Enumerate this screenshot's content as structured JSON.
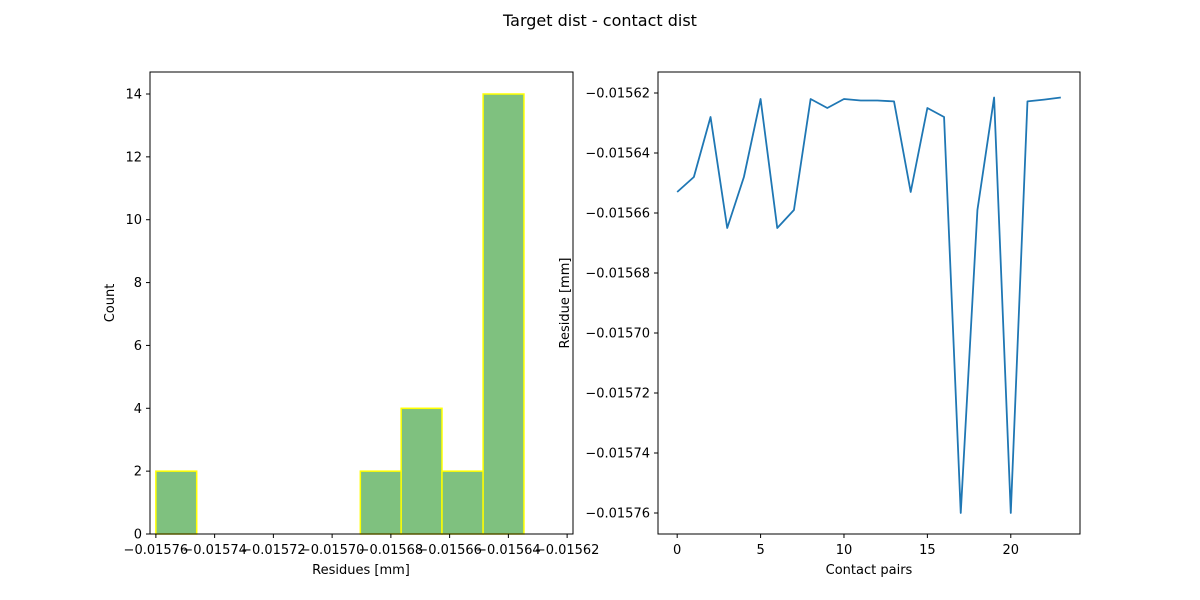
{
  "figure": {
    "title": "Target dist - contact dist"
  },
  "chart_data": [
    {
      "type": "bar",
      "subtype": "histogram",
      "title": "",
      "xlabel": "Residues [mm]",
      "ylabel": "Count",
      "xlim": [
        -0.015762,
        -0.015618
      ],
      "ylim": [
        0,
        14.7
      ],
      "bins": [
        {
          "x0": -0.01576,
          "x1": -0.0157461,
          "count": 2
        },
        {
          "x0": -0.0157461,
          "x1": -0.0157322,
          "count": 0
        },
        {
          "x0": -0.0157322,
          "x1": -0.0157182,
          "count": 0
        },
        {
          "x0": -0.0157182,
          "x1": -0.0157043,
          "count": 0
        },
        {
          "x0": -0.0157043,
          "x1": -0.0156904,
          "count": 0
        },
        {
          "x0": -0.0156904,
          "x1": -0.0156765,
          "count": 2
        },
        {
          "x0": -0.0156765,
          "x1": -0.0156626,
          "count": 4
        },
        {
          "x0": -0.0156626,
          "x1": -0.0156486,
          "count": 2
        },
        {
          "x0": -0.0156486,
          "x1": -0.0156347,
          "count": 14
        }
      ],
      "bar_color": "#7fc17f",
      "edge_color": "#ffff00",
      "xticks": [
        {
          "value": -0.01576,
          "label": "−0.01576"
        },
        {
          "value": -0.01574,
          "label": "−0.01574"
        },
        {
          "value": -0.01572,
          "label": "−0.01572"
        },
        {
          "value": -0.0157,
          "label": "−0.01570"
        },
        {
          "value": -0.01568,
          "label": "−0.01568"
        },
        {
          "value": -0.01566,
          "label": "−0.01566"
        },
        {
          "value": -0.01564,
          "label": "−0.01564"
        },
        {
          "value": -0.01562,
          "label": "−0.01562"
        }
      ],
      "yticks": [
        {
          "value": 0,
          "label": "0"
        },
        {
          "value": 2,
          "label": "2"
        },
        {
          "value": 4,
          "label": "4"
        },
        {
          "value": 6,
          "label": "6"
        },
        {
          "value": 8,
          "label": "8"
        },
        {
          "value": 10,
          "label": "10"
        },
        {
          "value": 12,
          "label": "12"
        },
        {
          "value": 14,
          "label": "14"
        }
      ]
    },
    {
      "type": "line",
      "title": "",
      "xlabel": "Contact pairs",
      "ylabel": "Residue [mm]",
      "xlim": [
        -1.15,
        24.15
      ],
      "ylim": [
        -0.015767,
        -0.015613
      ],
      "line_color": "#1f77b4",
      "x": [
        0,
        1,
        2,
        3,
        4,
        5,
        6,
        7,
        8,
        9,
        10,
        11,
        12,
        13,
        14,
        15,
        16,
        17,
        18,
        19,
        20,
        21,
        22,
        23
      ],
      "y": [
        -0.015653,
        -0.015648,
        -0.015628,
        -0.015665,
        -0.015648,
        -0.015622,
        -0.015665,
        -0.015659,
        -0.015622,
        -0.015625,
        -0.015622,
        -0.0156225,
        -0.0156225,
        -0.0156228,
        -0.015653,
        -0.015625,
        -0.015628,
        -0.01576,
        -0.015659,
        -0.0156215,
        -0.01576,
        -0.0156228,
        -0.0156222,
        -0.0156215
      ],
      "xticks": [
        {
          "value": 0,
          "label": "0"
        },
        {
          "value": 5,
          "label": "5"
        },
        {
          "value": 10,
          "label": "10"
        },
        {
          "value": 15,
          "label": "15"
        },
        {
          "value": 20,
          "label": "20"
        }
      ],
      "yticks": [
        {
          "value": -0.01562,
          "label": "−0.01562"
        },
        {
          "value": -0.01564,
          "label": "−0.01564"
        },
        {
          "value": -0.01566,
          "label": "−0.01566"
        },
        {
          "value": -0.01568,
          "label": "−0.01568"
        },
        {
          "value": -0.0157,
          "label": "−0.01570"
        },
        {
          "value": -0.01572,
          "label": "−0.01572"
        },
        {
          "value": -0.01574,
          "label": "−0.01574"
        },
        {
          "value": -0.01576,
          "label": "−0.01576"
        }
      ]
    }
  ]
}
